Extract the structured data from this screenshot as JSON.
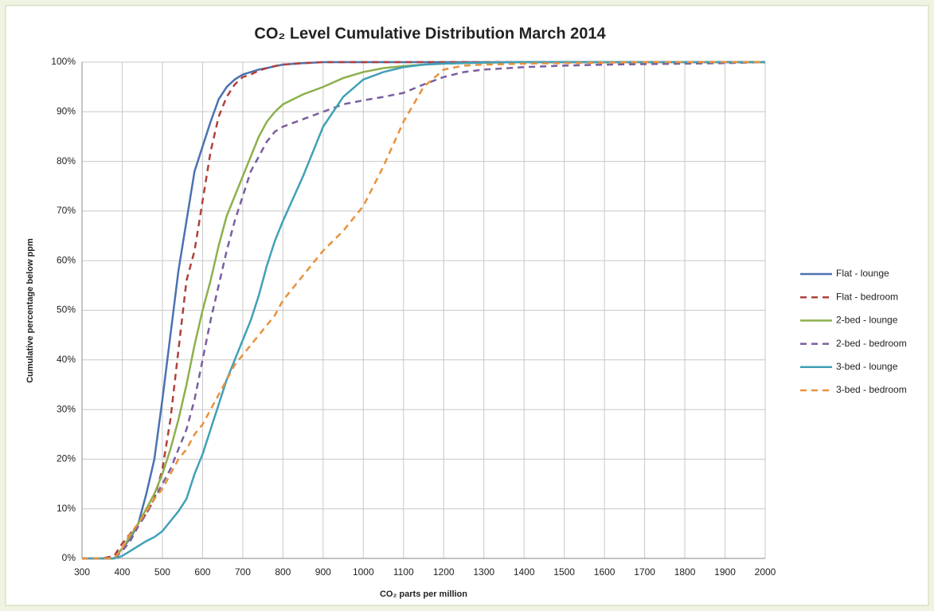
{
  "chart_data": {
    "type": "line",
    "title": "CO₂ Level Cumulative Distribution March 2014",
    "x_label": "CO₂ parts per million",
    "y_label": "Cumulative percentage below ppm",
    "x": [
      300,
      350,
      380,
      400,
      420,
      440,
      460,
      480,
      500,
      520,
      540,
      560,
      580,
      600,
      620,
      640,
      660,
      680,
      700,
      720,
      740,
      760,
      780,
      800,
      850,
      900,
      950,
      1000,
      1050,
      1100,
      1150,
      1200,
      1250,
      1300,
      1400,
      1500,
      1600,
      1700,
      1800,
      1900,
      2000
    ],
    "series": [
      {
        "name": "Flat - lounge",
        "color": "#4a72b0",
        "dashed": false,
        "values": [
          0,
          0,
          0,
          2,
          4,
          7,
          13,
          20,
          32,
          45,
          58,
          68,
          78,
          83,
          88,
          92.5,
          95,
          96.5,
          97.5,
          98,
          98.5,
          98.8,
          99.2,
          99.5,
          99.8,
          100,
          100,
          100,
          100,
          100,
          100,
          100,
          100,
          100,
          100,
          100,
          100,
          100,
          100,
          100,
          100
        ]
      },
      {
        "name": "Flat - bedroom",
        "color": "#b0403c",
        "dashed": true,
        "values": [
          0,
          0,
          0.5,
          3,
          5,
          7,
          9,
          12,
          18,
          28,
          42,
          56,
          62,
          72,
          82,
          89,
          93,
          95.5,
          97,
          97.5,
          98.3,
          98.8,
          99.2,
          99.5,
          99.8,
          100,
          100,
          100,
          100,
          100,
          100,
          100,
          100,
          100,
          100,
          100,
          100,
          100,
          100,
          100,
          100
        ]
      },
      {
        "name": "2-bed - lounge",
        "color": "#8db04b",
        "dashed": false,
        "values": [
          0,
          0,
          0,
          2,
          4.5,
          7,
          10,
          13,
          17,
          22,
          28,
          35,
          43,
          50,
          56,
          63,
          69,
          73,
          77,
          81,
          85,
          88,
          90,
          91.5,
          93.5,
          95,
          96.8,
          98,
          98.8,
          99.2,
          99.5,
          99.7,
          99.8,
          99.9,
          100,
          100,
          100,
          100,
          100,
          100,
          100
        ]
      },
      {
        "name": "2-bed - bedroom",
        "color": "#7a5ea0",
        "dashed": true,
        "values": [
          0,
          0,
          0,
          1.5,
          3.5,
          6.5,
          9,
          12,
          15,
          18,
          22,
          26,
          32,
          40,
          48,
          55,
          62,
          68,
          73,
          78,
          81,
          84,
          86,
          87,
          88.5,
          90,
          91.5,
          92.3,
          93,
          93.8,
          95.5,
          97,
          98,
          98.5,
          99,
          99.3,
          99.5,
          99.6,
          99.7,
          99.8,
          100
        ]
      },
      {
        "name": "3-bed - lounge",
        "color": "#40a0b8",
        "dashed": false,
        "values": [
          0,
          0,
          0,
          0.5,
          1.5,
          2.5,
          3.5,
          4.3,
          5.5,
          7.5,
          9.5,
          12,
          17,
          21,
          26,
          31,
          36,
          40,
          44,
          48,
          53,
          59,
          64,
          68,
          77,
          87,
          93,
          96.5,
          98,
          99,
          99.5,
          99.7,
          99.8,
          99.9,
          100,
          100,
          100,
          100,
          100,
          100,
          100
        ]
      },
      {
        "name": "3-bed - bedroom",
        "color": "#e8913e",
        "dashed": true,
        "values": [
          0,
          0,
          0,
          2,
          5,
          7,
          9.5,
          12,
          14,
          17,
          20,
          22,
          25,
          27,
          30,
          33,
          36,
          39,
          41,
          43,
          45,
          47,
          49,
          52,
          57,
          62,
          66,
          71,
          79,
          88,
          95,
          98.5,
          99.3,
          99.5,
          99.7,
          99.8,
          99.9,
          100,
          100,
          100,
          100
        ]
      }
    ],
    "xlim": [
      300,
      2000
    ],
    "xticks": [
      300,
      400,
      500,
      600,
      700,
      800,
      900,
      1000,
      1100,
      1200,
      1300,
      1400,
      1500,
      1600,
      1700,
      1800,
      1900,
      2000
    ],
    "ylim": [
      0,
      100
    ],
    "yticks": [
      {
        "value": 0,
        "label": "0%"
      },
      {
        "value": 10,
        "label": "10%"
      },
      {
        "value": 20,
        "label": "20%"
      },
      {
        "value": 30,
        "label": "30%"
      },
      {
        "value": 40,
        "label": "40%"
      },
      {
        "value": 50,
        "label": "50%"
      },
      {
        "value": 60,
        "label": "60%"
      },
      {
        "value": 70,
        "label": "70%"
      },
      {
        "value": 80,
        "label": "80%"
      },
      {
        "value": 90,
        "label": "90%"
      },
      {
        "value": 100,
        "label": "100%"
      }
    ],
    "grid": true,
    "legend": "right"
  }
}
